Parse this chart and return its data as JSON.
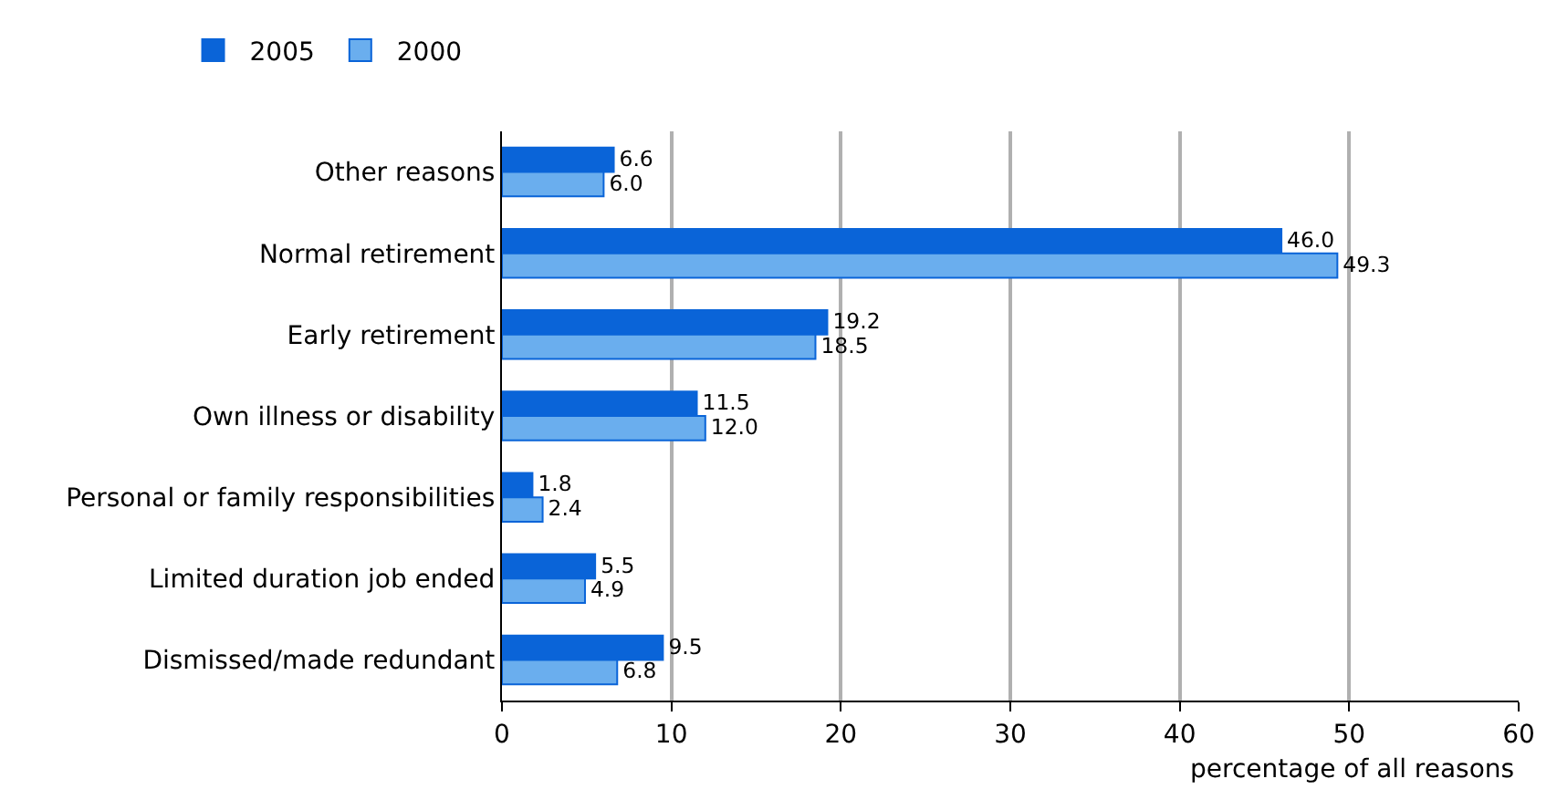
{
  "chart_data": {
    "type": "bar",
    "orientation": "horizontal",
    "xlabel": "percentage of all reasons",
    "categories": [
      "Other reasons",
      "Normal retirement",
      "Early retirement",
      "Own illness or disability",
      "Personal or family responsibilities",
      "Limited duration job ended",
      "Dismissed/made redundant"
    ],
    "series": [
      {
        "name": "2005",
        "color": "#0a64d8",
        "values": [
          6.6,
          46.0,
          19.2,
          11.5,
          1.8,
          5.5,
          9.5
        ],
        "value_labels": [
          "6.6",
          "46.0",
          "19.2",
          "11.5",
          "1.8",
          "5.5",
          "9.5"
        ]
      },
      {
        "name": "2000",
        "color": "#6aaeee",
        "values": [
          6.0,
          49.3,
          18.5,
          12.0,
          2.4,
          4.9,
          6.8
        ],
        "value_labels": [
          "6.0",
          "49.3",
          "18.5",
          "12.0",
          "2.4",
          "4.9",
          "6.8"
        ]
      }
    ],
    "xlim": [
      0,
      60
    ],
    "xticks": [
      0,
      10,
      20,
      30,
      40,
      50,
      60
    ],
    "grid": "x",
    "legend": "top left"
  }
}
